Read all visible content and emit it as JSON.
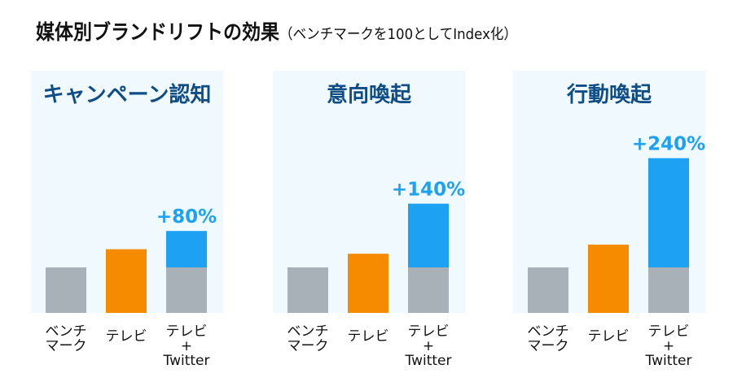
{
  "chart_data": {
    "type": "bar",
    "title": "媒体別ブランドリフトの効果",
    "subtitle": "（ベンチマークを100としてIndex化）",
    "categories": [
      "ベンチ\nマーク",
      "テレビ",
      "テレビ\n+\nTwitter"
    ],
    "baseline_value": 100,
    "panels": [
      {
        "title": "キャンペーン認知",
        "values": [
          100,
          140,
          180
        ],
        "annotation": "+80%"
      },
      {
        "title": "意向喚起",
        "values": [
          100,
          130,
          240
        ],
        "annotation": "+140%"
      },
      {
        "title": "行動喚起",
        "values": [
          100,
          150,
          340
        ],
        "annotation": "+240%"
      }
    ],
    "colors": {
      "benchmark": "#a8b0b8",
      "tv": "#f78b00",
      "twitter_lift": "#1da1f2",
      "panel_bg": "#f0f9fd",
      "panel_title": "#0f4d86",
      "annotation": "#1da1f2"
    },
    "grid": false,
    "legend": "none"
  }
}
